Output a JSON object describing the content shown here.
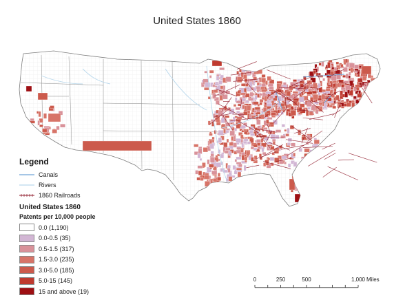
{
  "map": {
    "title": "United States 1860",
    "palette": {
      "class0": "#ffffff",
      "class1": "#d2b6d4",
      "class2": "#d9929a",
      "class3": "#d77468",
      "class4": "#cc5a4c",
      "class5": "#bf3a2f",
      "class6": "#9e0f13",
      "canals": "#6fa3d8",
      "rivers": "#b9d8ec",
      "railroads": "#8f1a2a",
      "county_border": "#cfcfcf",
      "state_border": "#777777"
    }
  },
  "legend": {
    "heading": "Legend",
    "lines": [
      {
        "label": "Canals",
        "style": "canal"
      },
      {
        "label": "Rivers",
        "style": "river"
      },
      {
        "label": "1860 Railroads",
        "style": "railroad"
      }
    ],
    "subtitle": "United States 1860",
    "field": "Patents per 10,000 people",
    "classes": [
      {
        "label": "0.0 (1,190)",
        "color": "#ffffff"
      },
      {
        "label": "0.0-0.5 (35)",
        "color": "#d2b6d4"
      },
      {
        "label": "0.5-1.5 (317)",
        "color": "#d9929a"
      },
      {
        "label": "1.5-3.0 (235)",
        "color": "#d77468"
      },
      {
        "label": "3.0-5.0 (185)",
        "color": "#cc5a4c"
      },
      {
        "label": "5.0-15 (145)",
        "color": "#bf3a2f"
      },
      {
        "label": "15 and above (19)",
        "color": "#9e0f13"
      }
    ]
  },
  "scale": {
    "ticks": [
      {
        "label": "0",
        "value": 0
      },
      {
        "label": "250",
        "value": 250
      },
      {
        "label": "500",
        "value": 500
      },
      {
        "label": "1,000",
        "value": 1000
      }
    ],
    "unit": "Miles",
    "max": 1000
  }
}
